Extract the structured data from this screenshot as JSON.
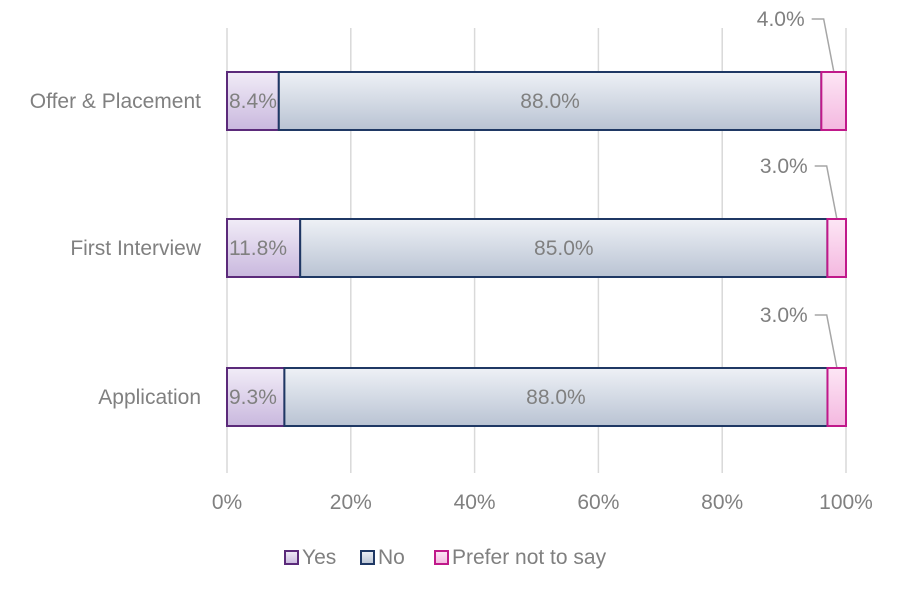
{
  "chart_data": {
    "type": "bar",
    "orientation": "horizontal",
    "stacked": "percent",
    "categories": [
      "Offer & Placement",
      "First Interview",
      "Application"
    ],
    "series": [
      {
        "name": "Yes",
        "values": [
          8.4,
          11.8,
          9.3
        ],
        "labels": [
          "8.4%",
          "11.8%",
          "9.3%"
        ],
        "fill": "#d9cce8",
        "stroke": "#5b2a7a"
      },
      {
        "name": "No",
        "values": [
          88.0,
          85.0,
          88.0
        ],
        "labels": [
          "88.0%",
          "85.0%",
          "88.0%"
        ],
        "fill": "#cdd4e0",
        "stroke": "#1f3864"
      },
      {
        "name": "Prefer not to say",
        "values": [
          4.0,
          3.0,
          3.0
        ],
        "labels": [
          "4.0%",
          "3.0%",
          "3.0%"
        ],
        "fill": "#f6c9e8",
        "stroke": "#c0198a"
      }
    ],
    "x_ticks": [
      "0%",
      "20%",
      "40%",
      "60%",
      "80%",
      "100%"
    ],
    "xlim": [
      0,
      100
    ],
    "grid": "vertical",
    "legend_position": "bottom",
    "colors": {
      "gridline": "#d9d9d9",
      "text": "#808080",
      "leader": "#a6a6a6"
    }
  }
}
